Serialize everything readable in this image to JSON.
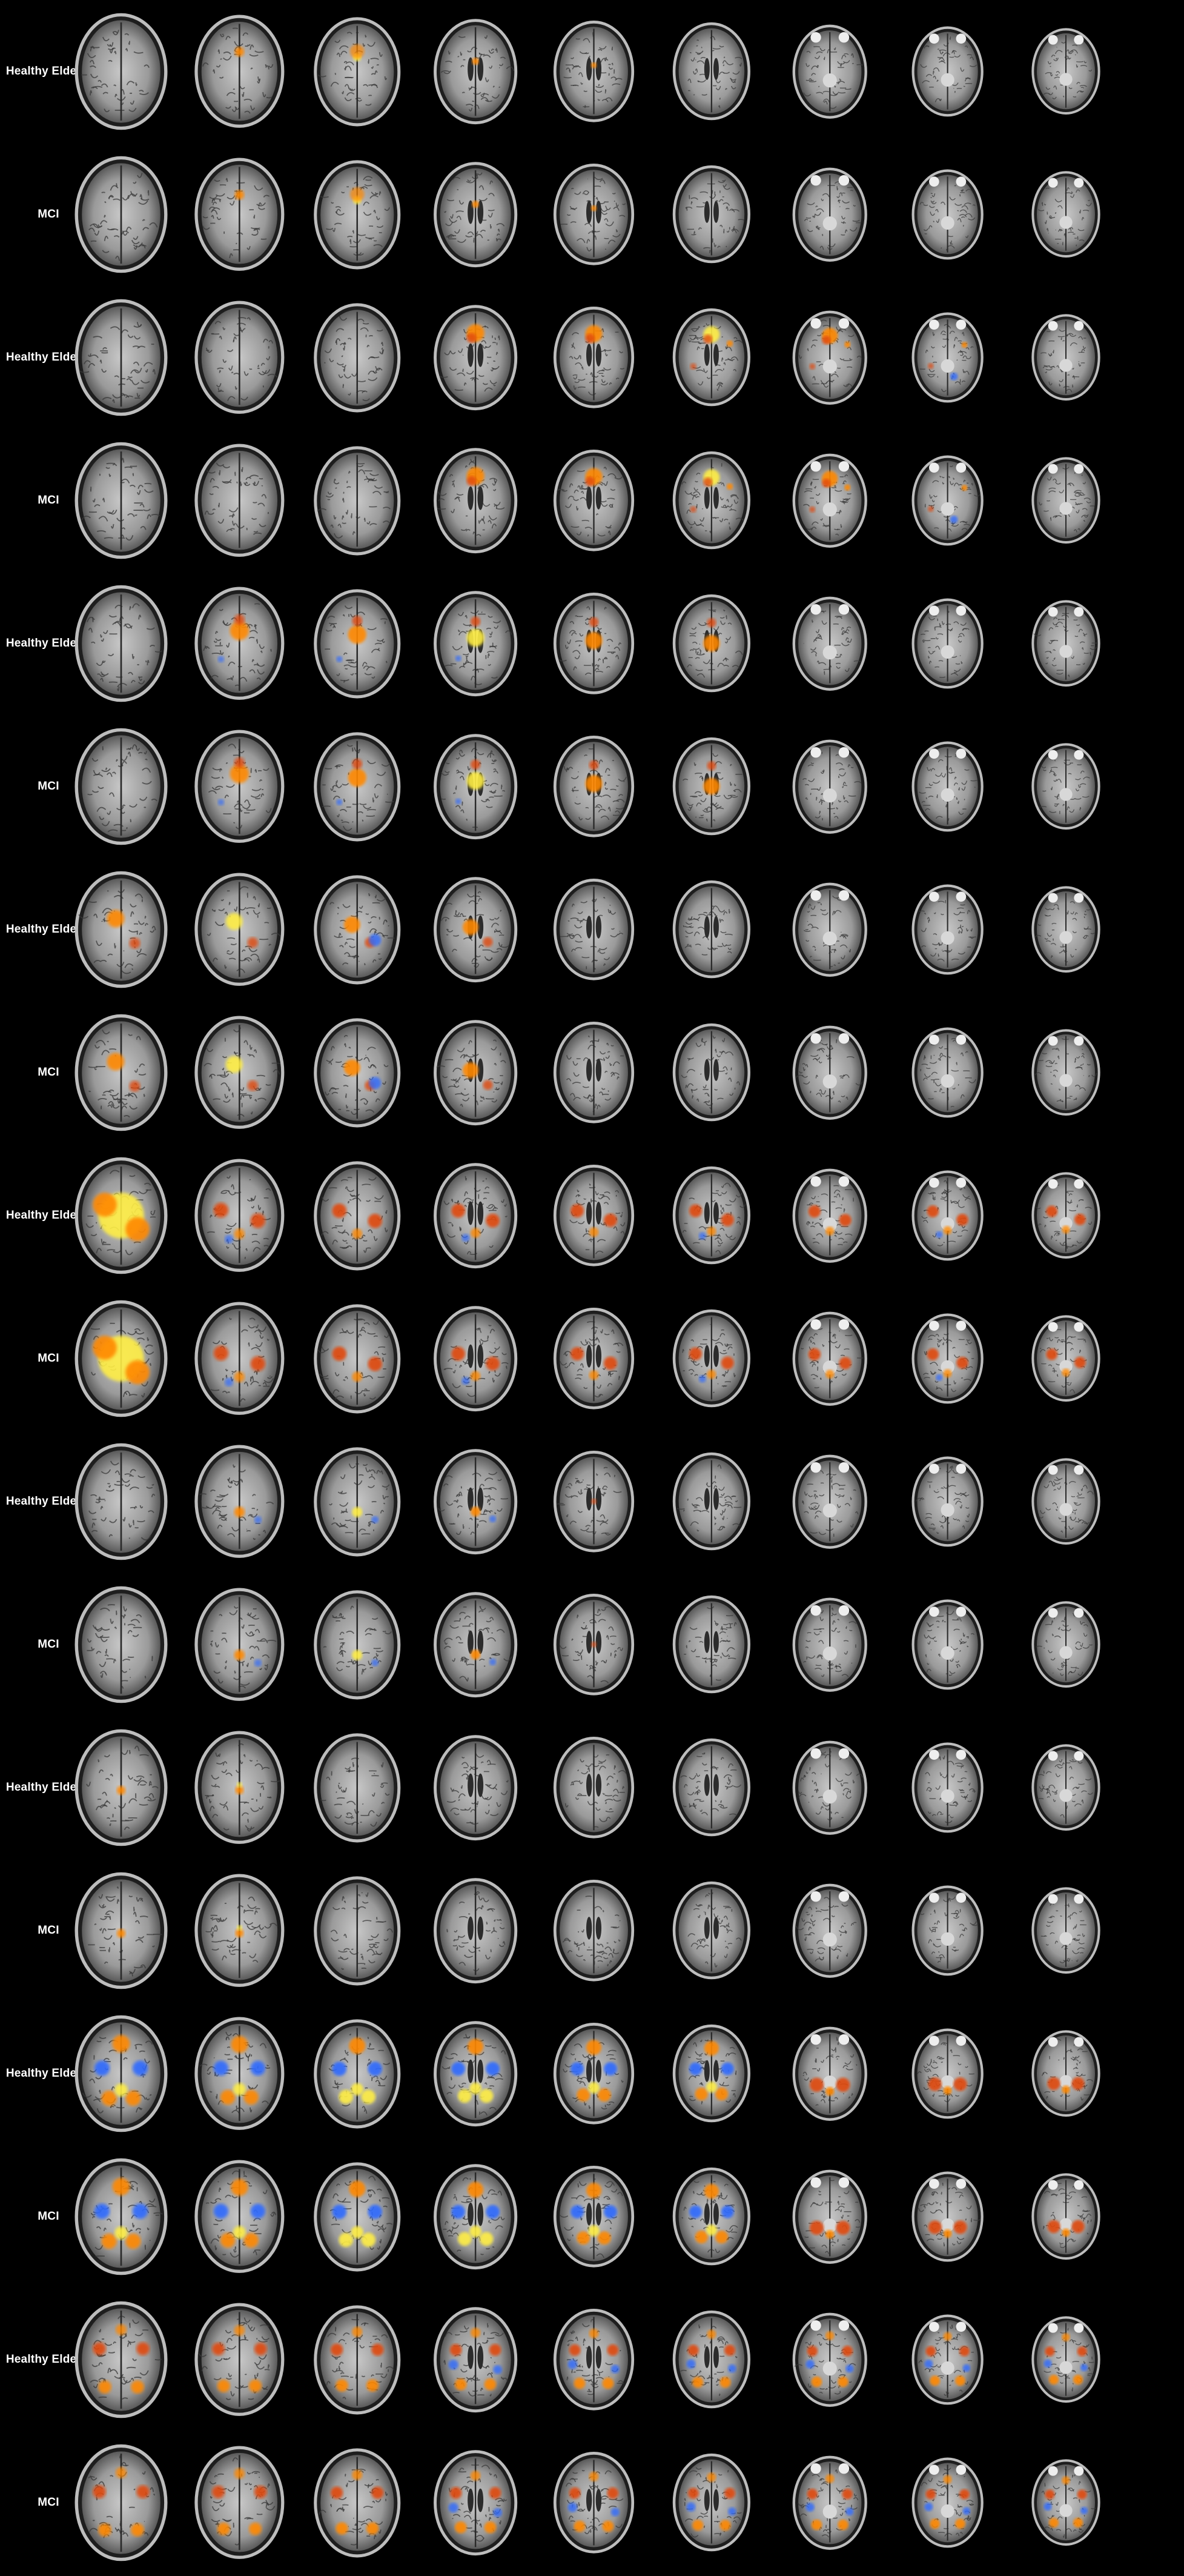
{
  "figure": {
    "rows": [
      {
        "label": "Healthy Elderly"
      },
      {
        "label": "MCI"
      },
      {
        "label": "Healthy Elderly"
      },
      {
        "label": "MCI"
      },
      {
        "label": "Healthy Elderly"
      },
      {
        "label": "MCI"
      },
      {
        "label": "Healthy Elderly"
      },
      {
        "label": "MCI"
      },
      {
        "label": "Healthy Elderly"
      },
      {
        "label": "MCI"
      },
      {
        "label": "Healthy Elderly"
      },
      {
        "label": "MCI"
      },
      {
        "label": "Healthy Elderly"
      },
      {
        "label": "MCI"
      },
      {
        "label": "Healthy Elderly"
      },
      {
        "label": "MCI"
      },
      {
        "label": "Healthy Elderly"
      },
      {
        "label": "MCI"
      }
    ],
    "slices_per_row": 9,
    "colors": {
      "background": "#000000",
      "label_text": "#ffffff",
      "activation_positive_hot": "#ffee44",
      "activation_positive": "#ff8800",
      "activation_positive_dark": "#e04a10",
      "activation_negative": "#2f6bff"
    }
  }
}
